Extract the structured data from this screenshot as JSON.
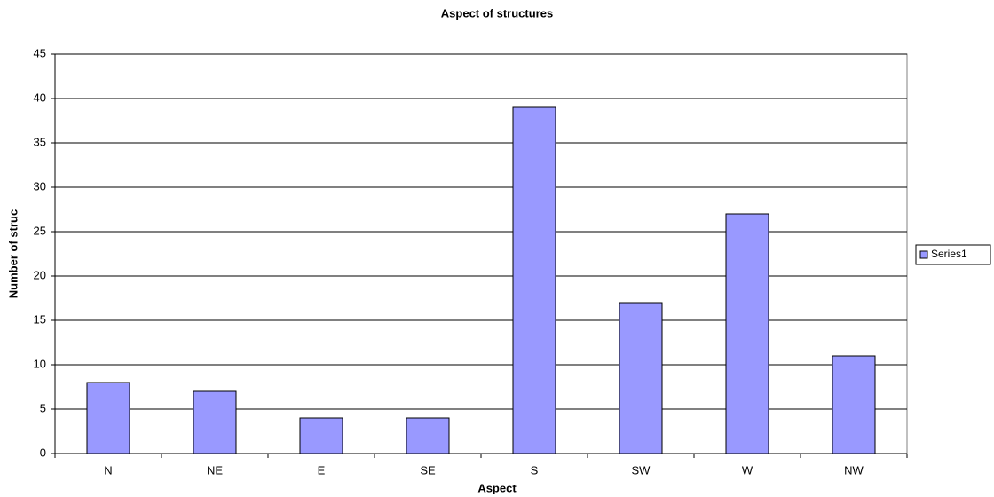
{
  "chart_data": {
    "type": "bar",
    "title": "Aspect of structures",
    "x_label": "Aspect",
    "y_label": "Number of struc",
    "categories": [
      "N",
      "NE",
      "E",
      "SE",
      "S",
      "SW",
      "W",
      "NW"
    ],
    "series": [
      {
        "name": "Series1",
        "color": "#9999ff",
        "values": [
          8,
          7,
          4,
          4,
          39,
          17,
          27,
          11
        ]
      }
    ],
    "ylim": [
      0,
      45
    ],
    "yticks": [
      0,
      5,
      10,
      15,
      20,
      25,
      30,
      35,
      40,
      45
    ],
    "grid": true,
    "legend": "right"
  }
}
